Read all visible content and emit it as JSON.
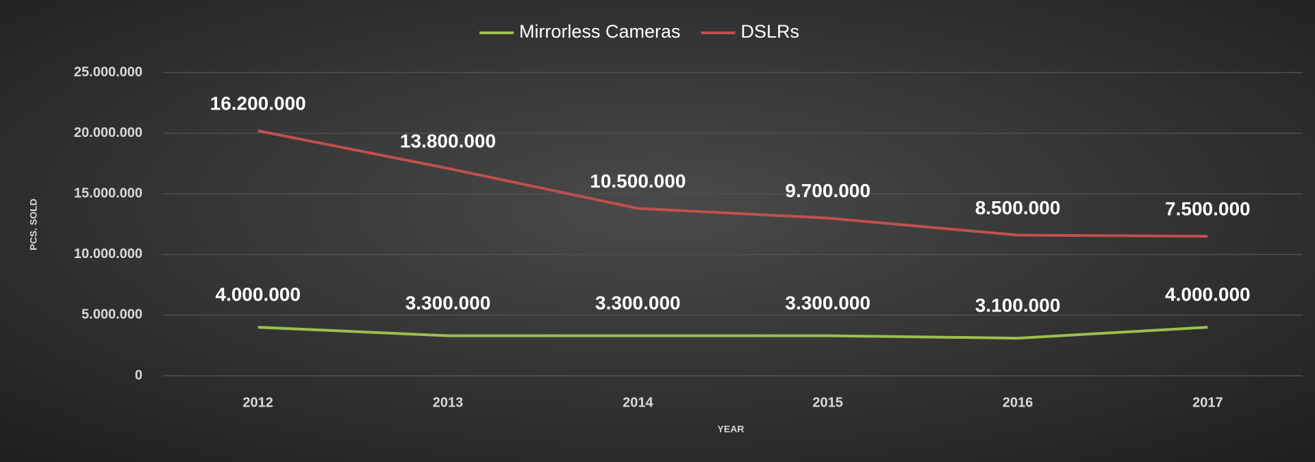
{
  "chart_data": {
    "type": "line",
    "stacked": true,
    "categories": [
      "2012",
      "2013",
      "2014",
      "2015",
      "2016",
      "2017"
    ],
    "x_label": "YEAR",
    "y_label": "PCS. SOLD",
    "series": [
      {
        "name": "Mirrorless Cameras",
        "color": "#9bc04f",
        "values": [
          4000000,
          3300000,
          3300000,
          3300000,
          3100000,
          4000000
        ],
        "value_labels": [
          "4.000.000",
          "3.300.000",
          "3.300.000",
          "3.300.000",
          "3.100.000",
          "4.000.000"
        ]
      },
      {
        "name": "DSLRs",
        "color": "#c0504d",
        "values": [
          16200000,
          13800000,
          10500000,
          9700000,
          8500000,
          7500000
        ],
        "value_labels": [
          "16.200.000",
          "13.800.000",
          "10.500.000",
          "9.700.000",
          "8.500.000",
          "7.500.000"
        ]
      }
    ],
    "ylim": [
      0,
      25000000
    ],
    "yticks": [
      0,
      {
        "value": 5000000,
        "label": "5.000.000"
      },
      {
        "value": 10000000,
        "label": "10.000.000"
      },
      {
        "value": 15000000,
        "label": "15.000.000"
      },
      {
        "value": 20000000,
        "label": "20.000.000"
      },
      {
        "value": 25000000,
        "label": "25.000.000"
      }
    ],
    "grid": true,
    "legend": "top"
  }
}
